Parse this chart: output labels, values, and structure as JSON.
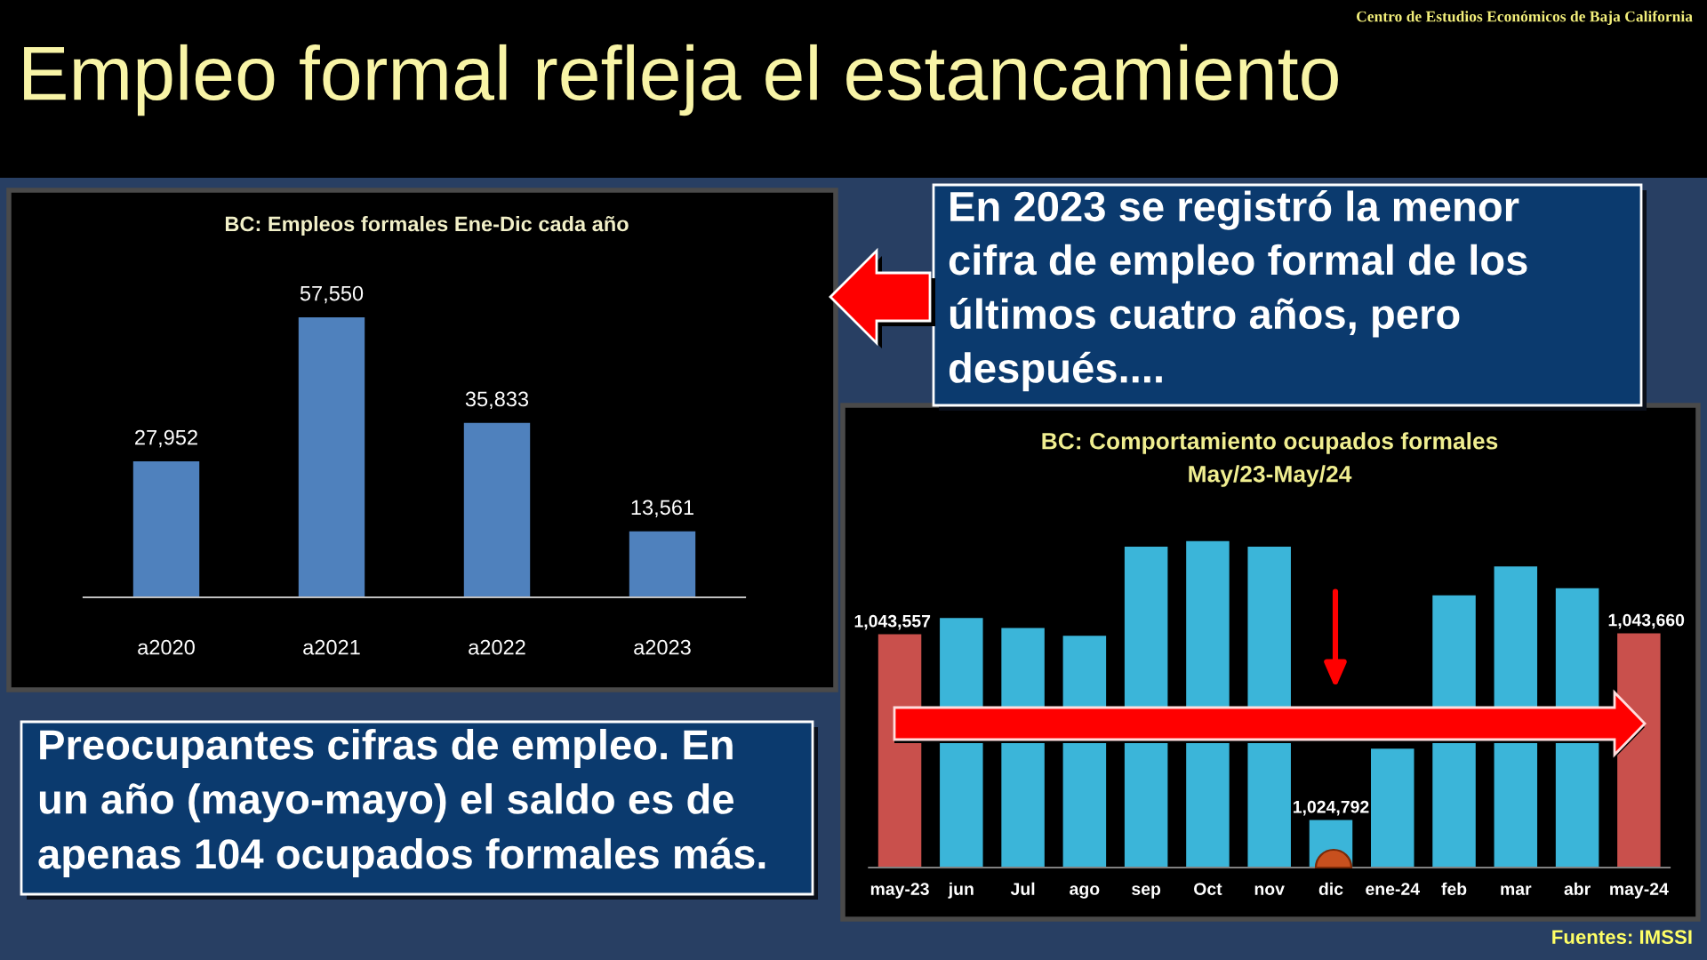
{
  "chart_data": [
    {
      "type": "other",
      "title": "Empleo formal refleja el estancamiento",
      "annotations": [
        "Centro de Estudios Económicos de Baja California",
        "En 2023 se registró la menor\ncifra de empleo formal de los\núltimos cuatro años, pero\ndespués....",
        "Preocupantes cifras de empleo. En\nun año (mayo-mayo) el saldo es de\napenas 104 ocupados formales más.",
        "Fuentes: IMSSI"
      ]
    },
    {
      "type": "bar",
      "title": "BC: Empleos formales Ene-Dic cada año",
      "categories": [
        "a2020",
        "a2021",
        "a2022",
        "a2023"
      ],
      "values": [
        27952,
        57550,
        35833,
        13561
      ],
      "color": "#4f81bd",
      "value_labels": [
        "27,952",
        "57,550",
        "35,833",
        "13,561"
      ],
      "tick_labels": "x"
    },
    {
      "type": "bar",
      "title": "BC: Comportamiento ocupados formales\nMay/23-May/24",
      "categories": [
        "may-23",
        "jun",
        "Jul",
        "ago",
        "sep",
        "Oct",
        "nov",
        "dic",
        "ene-24",
        "feb",
        "mar",
        "abr",
        "may-24"
      ],
      "values": [
        1043557,
        1045200,
        1044200,
        1043400,
        1052400,
        1053000,
        1052400,
        1024792,
        1032000,
        1047500,
        1050400,
        1048200,
        1043660
      ],
      "colors": [
        "#c9504c",
        "#3bb5d9",
        "#3bb5d9",
        "#3bb5d9",
        "#3bb5d9",
        "#3bb5d9",
        "#3bb5d9",
        "#3bb5d9",
        "#3bb5d9",
        "#3bb5d9",
        "#3bb5d9",
        "#3bb5d9",
        "#c9504c"
      ],
      "value_labels": [
        "1,043,557",
        null,
        null,
        null,
        null,
        null,
        null,
        "1,024,792",
        null,
        null,
        null,
        null,
        "1,043,660"
      ],
      "ylim": [
        1020000,
        1053000
      ],
      "tick_labels": "x"
    }
  ]
}
